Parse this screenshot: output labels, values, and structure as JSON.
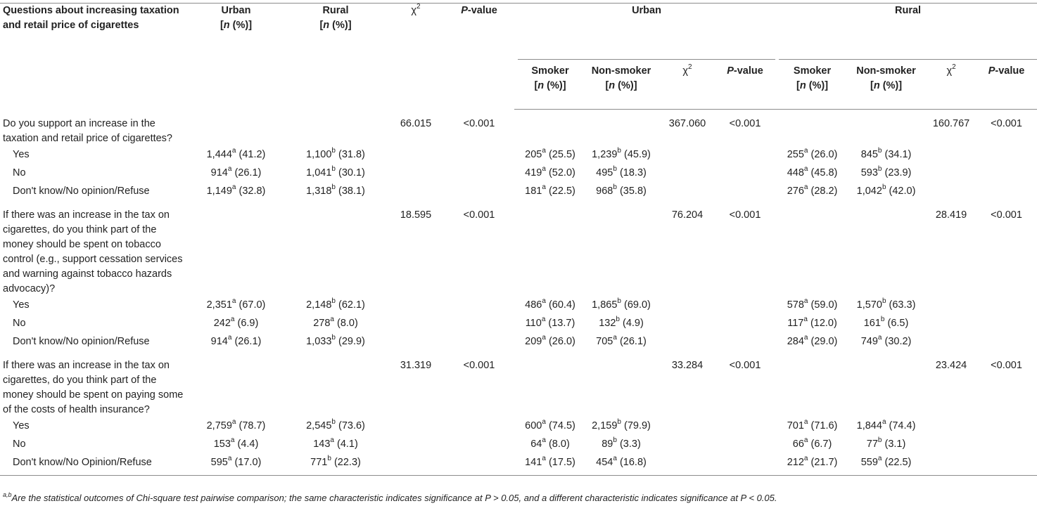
{
  "header": {
    "question_col": "Questions about increasing taxation and retail price of cigarettes",
    "urban": "Urban",
    "rural": "Rural",
    "n_pct": "[n (%)]",
    "chi": "χ",
    "chi_sup": "2",
    "pvalue": "P-value",
    "group_urban": "Urban",
    "group_rural": "Rural",
    "smoker": "Smoker",
    "nonsmoker": "Non-smoker"
  },
  "questions": [
    {
      "text": "Do you support an increase in the taxation and retail price of cigarettes?",
      "chi_total": "66.015",
      "p_total": "<0.001",
      "chi_urban": "367.060",
      "p_urban": "<0.001",
      "chi_rural": "160.767",
      "p_rural": "<0.001",
      "answers": [
        {
          "label": "Yes",
          "urban": {
            "n": "1,444",
            "s": "a",
            "p": "(41.2)"
          },
          "rural": {
            "n": "1,100",
            "s": "b",
            "p": "(31.8)"
          },
          "u_smoker": {
            "n": "205",
            "s": "a",
            "p": "(25.5)"
          },
          "u_non": {
            "n": "1,239",
            "s": "b",
            "p": "(45.9)"
          },
          "r_smoker": {
            "n": "255",
            "s": "a",
            "p": "(26.0)"
          },
          "r_non": {
            "n": "845",
            "s": "b",
            "p": "(34.1)"
          }
        },
        {
          "label": "No",
          "urban": {
            "n": "914",
            "s": "a",
            "p": "(26.1)"
          },
          "rural": {
            "n": "1,041",
            "s": "b",
            "p": "(30.1)"
          },
          "u_smoker": {
            "n": "419",
            "s": "a",
            "p": "(52.0)"
          },
          "u_non": {
            "n": "495",
            "s": "b",
            "p": "(18.3)"
          },
          "r_smoker": {
            "n": "448",
            "s": "a",
            "p": "(45.8)"
          },
          "r_non": {
            "n": "593",
            "s": "b",
            "p": "(23.9)"
          }
        },
        {
          "label": "Don't know/No opinion/Refuse",
          "urban": {
            "n": "1,149",
            "s": "a",
            "p": "(32.8)"
          },
          "rural": {
            "n": "1,318",
            "s": "b",
            "p": "(38.1)"
          },
          "u_smoker": {
            "n": "181",
            "s": "a",
            "p": "(22.5)"
          },
          "u_non": {
            "n": "968",
            "s": "b",
            "p": "(35.8)"
          },
          "r_smoker": {
            "n": "276",
            "s": "a",
            "p": "(28.2)"
          },
          "r_non": {
            "n": "1,042",
            "s": "b",
            "p": "(42.0)"
          }
        }
      ]
    },
    {
      "text": "If there was an increase in the tax on cigarettes, do you think part of the money should be spent on tobacco control (e.g., support cessation services and warning against tobacco hazards advocacy)?",
      "chi_total": "18.595",
      "p_total": "<0.001",
      "chi_urban": "76.204",
      "p_urban": "<0.001",
      "chi_rural": "28.419",
      "p_rural": "<0.001",
      "answers": [
        {
          "label": "Yes",
          "urban": {
            "n": "2,351",
            "s": "a",
            "p": "(67.0)"
          },
          "rural": {
            "n": "2,148",
            "s": "b",
            "p": "(62.1)"
          },
          "u_smoker": {
            "n": "486",
            "s": "a",
            "p": "(60.4)"
          },
          "u_non": {
            "n": "1,865",
            "s": "b",
            "p": "(69.0)"
          },
          "r_smoker": {
            "n": "578",
            "s": "a",
            "p": "(59.0)"
          },
          "r_non": {
            "n": "1,570",
            "s": "b",
            "p": "(63.3)"
          }
        },
        {
          "label": "No",
          "urban": {
            "n": "242",
            "s": "a",
            "p": "(6.9)"
          },
          "rural": {
            "n": "278",
            "s": "a",
            "p": "(8.0)"
          },
          "u_smoker": {
            "n": "110",
            "s": "a",
            "p": "(13.7)"
          },
          "u_non": {
            "n": "132",
            "s": "b",
            "p": "(4.9)"
          },
          "r_smoker": {
            "n": "117",
            "s": "a",
            "p": "(12.0)"
          },
          "r_non": {
            "n": "161",
            "s": "b",
            "p": "(6.5)"
          }
        },
        {
          "label": "Don't know/No opinion/Refuse",
          "urban": {
            "n": "914",
            "s": "a",
            "p": "(26.1)"
          },
          "rural": {
            "n": "1,033",
            "s": "b",
            "p": "(29.9)"
          },
          "u_smoker": {
            "n": "209",
            "s": "a",
            "p": "(26.0)"
          },
          "u_non": {
            "n": "705",
            "s": "a",
            "p": "(26.1)"
          },
          "r_smoker": {
            "n": "284",
            "s": "a",
            "p": "(29.0)"
          },
          "r_non": {
            "n": "749",
            "s": "a",
            "p": "(30.2)"
          }
        }
      ]
    },
    {
      "text": "If there was an increase in the tax on cigarettes, do you think part of the money should be spent on paying some of the costs of health insurance?",
      "chi_total": "31.319",
      "p_total": "<0.001",
      "chi_urban": "33.284",
      "p_urban": "<0.001",
      "chi_rural": "23.424",
      "p_rural": "<0.001",
      "answers": [
        {
          "label": "Yes",
          "urban": {
            "n": "2,759",
            "s": "a",
            "p": "(78.7)"
          },
          "rural": {
            "n": "2,545",
            "s": "b",
            "p": "(73.6)"
          },
          "u_smoker": {
            "n": "600",
            "s": "a",
            "p": "(74.5)"
          },
          "u_non": {
            "n": "2,159",
            "s": "b",
            "p": "(79.9)"
          },
          "r_smoker": {
            "n": "701",
            "s": "a",
            "p": "(71.6)"
          },
          "r_non": {
            "n": "1,844",
            "s": "a",
            "p": "(74.4)"
          }
        },
        {
          "label": "No",
          "urban": {
            "n": "153",
            "s": "a",
            "p": "(4.4)"
          },
          "rural": {
            "n": "143",
            "s": "a",
            "p": "(4.1)"
          },
          "u_smoker": {
            "n": "64",
            "s": "a",
            "p": "(8.0)"
          },
          "u_non": {
            "n": "89",
            "s": "b",
            "p": "(3.3)"
          },
          "r_smoker": {
            "n": "66",
            "s": "a",
            "p": "(6.7)"
          },
          "r_non": {
            "n": "77",
            "s": "b",
            "p": "(3.1)"
          }
        },
        {
          "label": "Don't know/No Opinion/Refuse",
          "urban": {
            "n": "595",
            "s": "a",
            "p": "(17.0)"
          },
          "rural": {
            "n": "771",
            "s": "b",
            "p": "(22.3)"
          },
          "u_smoker": {
            "n": "141",
            "s": "a",
            "p": "(17.5)"
          },
          "u_non": {
            "n": "454",
            "s": "a",
            "p": "(16.8)"
          },
          "r_smoker": {
            "n": "212",
            "s": "a",
            "p": "(21.7)"
          },
          "r_non": {
            "n": "559",
            "s": "a",
            "p": "(22.5)"
          }
        }
      ]
    }
  ],
  "footnote": {
    "sup": "a,b",
    "text": "Are the statistical outcomes of Chi-square test pairwise comparison; the same characteristic indicates significance at P > 0.05, and a different characteristic indicates significance at P < 0.05."
  }
}
